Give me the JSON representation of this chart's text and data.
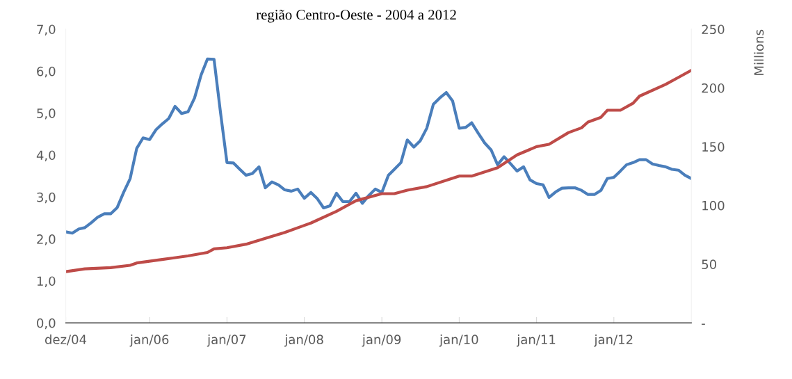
{
  "chart_data": {
    "type": "line",
    "title": "região Centro-Oeste - 2004 a 2012",
    "y2label": "Millions",
    "x": [
      "2004-12",
      "2005-01",
      "2005-02",
      "2005-03",
      "2005-04",
      "2005-05",
      "2005-06",
      "2005-07",
      "2005-08",
      "2005-09",
      "2005-10",
      "2005-11",
      "2005-12",
      "2006-01",
      "2006-02",
      "2006-03",
      "2006-04",
      "2006-05",
      "2006-06",
      "2006-07",
      "2006-08",
      "2006-09",
      "2006-10",
      "2006-11",
      "2006-12",
      "2007-01",
      "2007-02",
      "2007-03",
      "2007-04",
      "2007-05",
      "2007-06",
      "2007-07",
      "2007-08",
      "2007-09",
      "2007-10",
      "2007-11",
      "2007-12",
      "2008-01",
      "2008-02",
      "2008-03",
      "2008-04",
      "2008-05",
      "2008-06",
      "2008-07",
      "2008-08",
      "2008-09",
      "2008-10",
      "2008-11",
      "2008-12",
      "2009-01",
      "2009-02",
      "2009-03",
      "2009-04",
      "2009-05",
      "2009-06",
      "2009-07",
      "2009-08",
      "2009-09",
      "2009-10",
      "2009-11",
      "2009-12",
      "2010-01",
      "2010-02",
      "2010-03",
      "2010-04",
      "2010-05",
      "2010-06",
      "2010-07",
      "2010-08",
      "2010-09",
      "2010-10",
      "2010-11",
      "2010-12",
      "2011-01",
      "2011-02",
      "2011-03",
      "2011-04",
      "2011-05",
      "2011-06",
      "2011-07",
      "2011-08",
      "2011-09",
      "2011-10",
      "2011-11",
      "2011-12",
      "2012-01",
      "2012-02",
      "2012-03",
      "2012-04",
      "2012-05",
      "2012-06",
      "2012-07",
      "2012-08",
      "2012-09",
      "2012-10",
      "2012-11",
      "2012-12",
      "2013-01"
    ],
    "series": [
      {
        "color": "#4a7ebb",
        "values": [
          2.17,
          2.14,
          2.24,
          2.27,
          2.39,
          2.52,
          2.6,
          2.6,
          2.75,
          3.12,
          3.44,
          4.16,
          4.41,
          4.37,
          4.61,
          4.74,
          4.87,
          5.16,
          4.99,
          5.03,
          5.36,
          5.91,
          6.29,
          6.28,
          5.03,
          3.82,
          3.81,
          3.67,
          3.52,
          3.56,
          3.72,
          3.22,
          3.36,
          3.29,
          3.17,
          3.14,
          3.19,
          2.97,
          3.11,
          2.97,
          2.74,
          2.79,
          3.09,
          2.89,
          2.89,
          3.09,
          2.85,
          3.04,
          3.19,
          3.11,
          3.52,
          3.66,
          3.82,
          4.36,
          4.19,
          4.34,
          4.64,
          5.21,
          5.36,
          5.49,
          5.29,
          4.64,
          4.66,
          4.77,
          4.52,
          4.29,
          4.12,
          3.77,
          3.96,
          3.79,
          3.62,
          3.72,
          3.41,
          3.32,
          3.29,
          2.99,
          3.12,
          3.21,
          3.22,
          3.22,
          3.16,
          3.06,
          3.06,
          3.16,
          3.44,
          3.47,
          3.62,
          3.77,
          3.82,
          3.89,
          3.89,
          3.79,
          3.75,
          3.72,
          3.66,
          3.64,
          3.52,
          3.44
        ]
      },
      {
        "color": "#be4b48",
        "axis": "y2",
        "x": [
          "2004-12",
          "2005-03",
          "2005-07",
          "2005-10",
          "2005-11",
          "2006-03",
          "2006-07",
          "2006-10",
          "2006-11",
          "2007-01",
          "2007-04",
          "2007-07",
          "2007-10",
          "2008-01",
          "2008-02",
          "2008-06",
          "2008-09",
          "2009-01",
          "2009-03",
          "2009-05",
          "2009-08",
          "2010-01",
          "2010-03",
          "2010-07",
          "2010-10",
          "2011-01",
          "2011-03",
          "2011-06",
          "2011-08",
          "2011-09",
          "2011-11",
          "2011-12",
          "2012-02",
          "2012-04",
          "2012-05",
          "2012-09",
          "2012-11",
          "2013-01"
        ],
        "values": [
          43.6,
          46,
          47,
          49,
          51,
          54,
          57,
          60,
          63,
          64,
          67,
          72,
          77,
          83,
          85,
          95,
          104,
          110,
          110,
          113,
          116,
          125,
          125,
          132,
          143,
          150,
          152,
          162,
          166,
          171,
          175,
          181,
          181,
          187,
          193,
          203,
          209,
          215
        ]
      }
    ],
    "xlim": [
      "2004-12",
      "2013-01"
    ],
    "xticks": [
      {
        "value": "2004-12",
        "label": "dez/04"
      },
      {
        "value": "2006-01",
        "label": "jan/06"
      },
      {
        "value": "2007-01",
        "label": "jan/07"
      },
      {
        "value": "2008-01",
        "label": "jan/08"
      },
      {
        "value": "2009-01",
        "label": "jan/09"
      },
      {
        "value": "2010-01",
        "label": "jan/10"
      },
      {
        "value": "2011-01",
        "label": "jan/11"
      },
      {
        "value": "2012-01",
        "label": "jan/12"
      }
    ],
    "ylim": [
      0,
      7
    ],
    "yticks": [
      {
        "value": 0,
        "label": "0,0"
      },
      {
        "value": 1,
        "label": "1,0"
      },
      {
        "value": 2,
        "label": "2,0"
      },
      {
        "value": 3,
        "label": "3,0"
      },
      {
        "value": 4,
        "label": "4,0"
      },
      {
        "value": 5,
        "label": "5,0"
      },
      {
        "value": 6,
        "label": "6,0"
      },
      {
        "value": 7,
        "label": "7,0"
      }
    ],
    "y2lim": [
      0,
      250
    ],
    "y2ticks": [
      {
        "value": 0,
        "label": "-"
      },
      50,
      100,
      150,
      200,
      250
    ],
    "marker": "none",
    "line_style": "solid"
  }
}
